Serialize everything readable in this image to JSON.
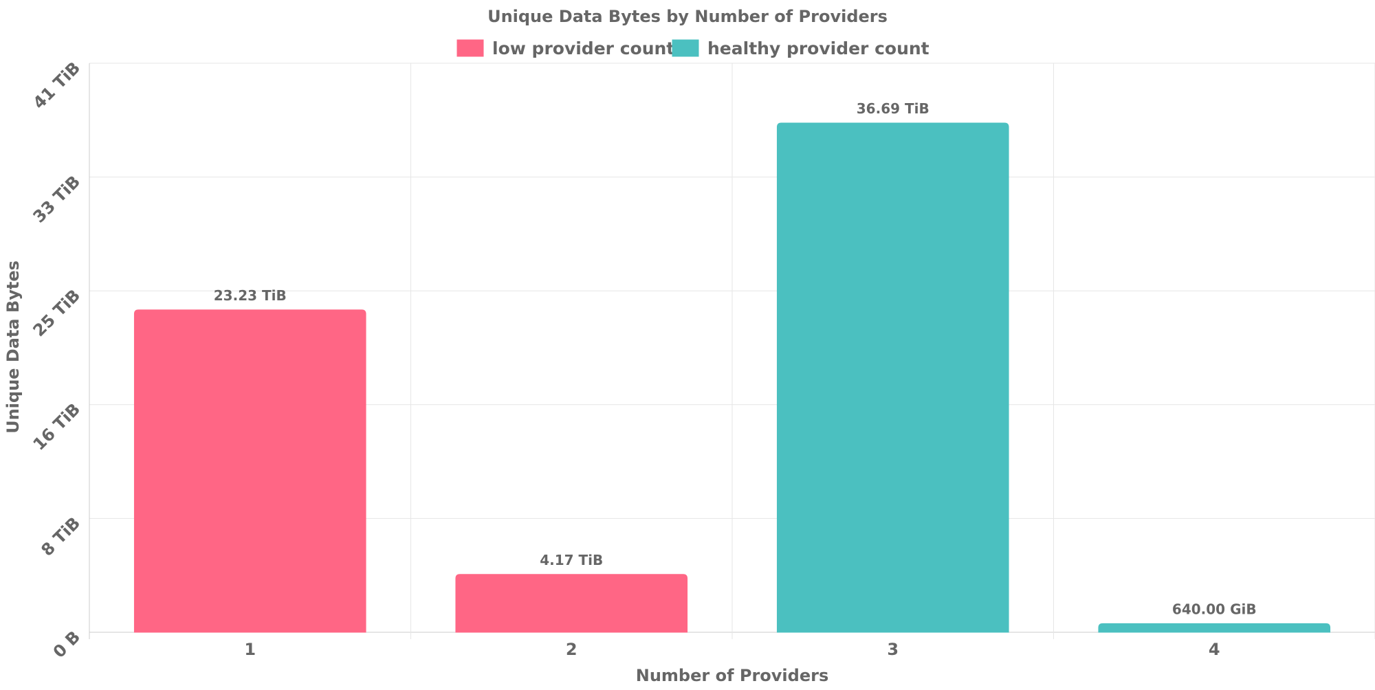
{
  "chart_data": {
    "type": "bar",
    "title": "Unique Data Bytes by Number of Providers",
    "xlabel": "Number of Providers",
    "ylabel": "Unique Data Bytes",
    "categories": [
      "1",
      "2",
      "3",
      "4"
    ],
    "values_tib": [
      23.23,
      4.17,
      36.69,
      0.625
    ],
    "value_labels": [
      "23.23 TiB",
      "4.17 TiB",
      "36.69 TiB",
      "640.00 GiB"
    ],
    "series_membership": [
      "low",
      "low",
      "healthy",
      "healthy"
    ],
    "legend": [
      {
        "key": "low",
        "label": "low provider count",
        "color": "#ff6685"
      },
      {
        "key": "healthy",
        "label": "healthy provider count",
        "color": "#4bc0c0"
      }
    ],
    "yticks_tib": [
      0,
      8.2,
      16.4,
      24.6,
      32.8,
      41
    ],
    "ytick_labels": [
      "0 B",
      "8 TiB",
      "16 TiB",
      "25 TiB",
      "33 TiB",
      "41 TiB"
    ],
    "ylim_tib": [
      0,
      41
    ],
    "grid": true,
    "legend_position": "top-center"
  }
}
